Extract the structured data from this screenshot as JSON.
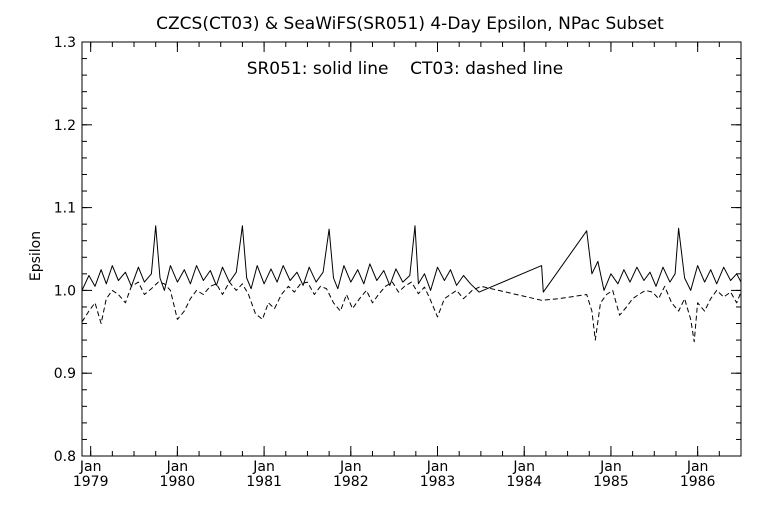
{
  "chart_data": {
    "type": "line",
    "title": "CZCS(CT03) & SeaWiFS(SR051) 4-Day Epsilon, NPac Subset",
    "annotation": "SR051: solid line    CT03: dashed line",
    "xlabel": "",
    "ylabel": "Epsilon",
    "xlim": [
      1978.9,
      1986.5
    ],
    "ylim": [
      0.8,
      1.3
    ],
    "y_ticks": [
      0.8,
      0.9,
      1.0,
      1.1,
      1.2,
      1.3
    ],
    "y_tick_labels": [
      "0.8",
      "0.9",
      "1.0",
      "1.1",
      "1.2",
      "1.3"
    ],
    "x_ticks": [
      {
        "value": 1979,
        "month": "Jan",
        "year": "1979"
      },
      {
        "value": 1980,
        "month": "Jan",
        "year": "1980"
      },
      {
        "value": 1981,
        "month": "Jan",
        "year": "1981"
      },
      {
        "value": 1982,
        "month": "Jan",
        "year": "1982"
      },
      {
        "value": 1983,
        "month": "Jan",
        "year": "1983"
      },
      {
        "value": 1984,
        "month": "Jan",
        "year": "1984"
      },
      {
        "value": 1985,
        "month": "Jan",
        "year": "1985"
      },
      {
        "value": 1986,
        "month": "Jan",
        "year": "1986"
      }
    ],
    "grid": false,
    "series": [
      {
        "name": "SR051",
        "style": "solid",
        "color": "#000000",
        "x": [
          1978.9,
          1978.98,
          1979.05,
          1979.12,
          1979.18,
          1979.25,
          1979.32,
          1979.4,
          1979.47,
          1979.55,
          1979.62,
          1979.7,
          1979.75,
          1979.8,
          1979.85,
          1979.92,
          1980.0,
          1980.08,
          1980.15,
          1980.22,
          1980.3,
          1980.38,
          1980.45,
          1980.52,
          1980.6,
          1980.68,
          1980.75,
          1980.8,
          1980.85,
          1980.92,
          1981.0,
          1981.08,
          1981.15,
          1981.22,
          1981.3,
          1981.38,
          1981.45,
          1981.52,
          1981.6,
          1981.68,
          1981.75,
          1981.8,
          1981.85,
          1981.92,
          1982.0,
          1982.08,
          1982.15,
          1982.22,
          1982.3,
          1982.38,
          1982.45,
          1982.52,
          1982.6,
          1982.68,
          1982.74,
          1982.78,
          1982.85,
          1982.92,
          1983.0,
          1983.08,
          1983.15,
          1983.22,
          1983.3,
          1983.38,
          1983.48,
          1984.2,
          1984.22,
          1984.72,
          1984.78,
          1984.85,
          1984.92,
          1985.0,
          1985.08,
          1985.15,
          1985.22,
          1985.3,
          1985.38,
          1985.45,
          1985.52,
          1985.6,
          1985.68,
          1985.74,
          1985.78,
          1985.85,
          1985.92,
          1986.0,
          1986.08,
          1986.15,
          1986.22,
          1986.3,
          1986.38,
          1986.45,
          1986.5
        ],
        "y": [
          1.0,
          1.018,
          1.005,
          1.025,
          1.008,
          1.03,
          1.012,
          1.022,
          1.005,
          1.028,
          1.01,
          1.02,
          1.078,
          1.015,
          1.0,
          1.03,
          1.01,
          1.025,
          1.008,
          1.03,
          1.012,
          1.024,
          1.006,
          1.028,
          1.01,
          1.022,
          1.078,
          1.015,
          1.002,
          1.03,
          1.008,
          1.026,
          1.01,
          1.03,
          1.012,
          1.022,
          1.006,
          1.028,
          1.01,
          1.022,
          1.074,
          1.015,
          1.002,
          1.03,
          1.01,
          1.025,
          1.008,
          1.032,
          1.012,
          1.024,
          1.006,
          1.026,
          1.01,
          1.018,
          1.078,
          1.008,
          1.02,
          1.0,
          1.028,
          1.012,
          1.025,
          1.006,
          1.018,
          1.008,
          0.998,
          1.03,
          0.998,
          1.072,
          1.02,
          1.035,
          1.0,
          1.02,
          1.008,
          1.025,
          1.01,
          1.028,
          1.012,
          1.022,
          1.005,
          1.028,
          1.01,
          1.02,
          1.075,
          1.015,
          1.0,
          1.03,
          1.01,
          1.025,
          1.008,
          1.028,
          1.012,
          1.02,
          1.01
        ]
      },
      {
        "name": "CT03",
        "style": "dashed",
        "color": "#000000",
        "x": [
          1978.9,
          1978.98,
          1979.05,
          1979.12,
          1979.18,
          1979.25,
          1979.32,
          1979.4,
          1979.47,
          1979.55,
          1979.62,
          1979.7,
          1979.78,
          1979.85,
          1979.92,
          1980.0,
          1980.08,
          1980.15,
          1980.22,
          1980.3,
          1980.38,
          1980.45,
          1980.52,
          1980.6,
          1980.68,
          1980.75,
          1980.82,
          1980.9,
          1980.98,
          1981.05,
          1981.12,
          1981.2,
          1981.28,
          1981.35,
          1981.42,
          1981.5,
          1981.58,
          1981.65,
          1981.72,
          1981.8,
          1981.88,
          1981.95,
          1982.02,
          1982.1,
          1982.18,
          1982.25,
          1982.32,
          1982.4,
          1982.48,
          1982.55,
          1982.62,
          1982.7,
          1982.78,
          1982.85,
          1982.92,
          1983.0,
          1983.08,
          1983.15,
          1983.22,
          1983.3,
          1983.4,
          1983.5,
          1984.2,
          1984.4,
          1984.72,
          1984.78,
          1984.82,
          1984.88,
          1984.95,
          1985.02,
          1985.1,
          1985.18,
          1985.25,
          1985.32,
          1985.4,
          1985.48,
          1985.55,
          1985.62,
          1985.7,
          1985.78,
          1985.85,
          1985.92,
          1985.96,
          1986.0,
          1986.08,
          1986.15,
          1986.22,
          1986.3,
          1986.38,
          1986.45,
          1986.5
        ],
        "y": [
          0.962,
          0.975,
          0.985,
          0.96,
          0.99,
          1.0,
          0.995,
          0.985,
          1.005,
          1.01,
          0.995,
          1.002,
          1.01,
          1.008,
          1.0,
          0.965,
          0.975,
          0.99,
          1.0,
          0.995,
          1.005,
          1.008,
          0.995,
          1.01,
          1.0,
          1.008,
          0.995,
          0.972,
          0.965,
          0.985,
          0.978,
          0.995,
          1.005,
          0.998,
          1.008,
          1.01,
          0.995,
          1.005,
          1.002,
          0.985,
          0.975,
          0.995,
          0.978,
          0.99,
          1.0,
          0.985,
          0.995,
          1.005,
          1.01,
          0.998,
          1.005,
          1.01,
          0.996,
          1.004,
          0.988,
          0.968,
          0.99,
          0.995,
          1.0,
          0.99,
          1.0,
          1.005,
          0.988,
          0.99,
          0.995,
          0.975,
          0.94,
          0.985,
          0.995,
          1.0,
          0.97,
          0.98,
          0.99,
          0.995,
          1.0,
          0.998,
          0.99,
          1.005,
          0.985,
          0.975,
          0.99,
          0.965,
          0.938,
          0.985,
          0.975,
          0.99,
          1.0,
          0.992,
          0.998,
          0.985,
          0.998
        ]
      }
    ]
  }
}
